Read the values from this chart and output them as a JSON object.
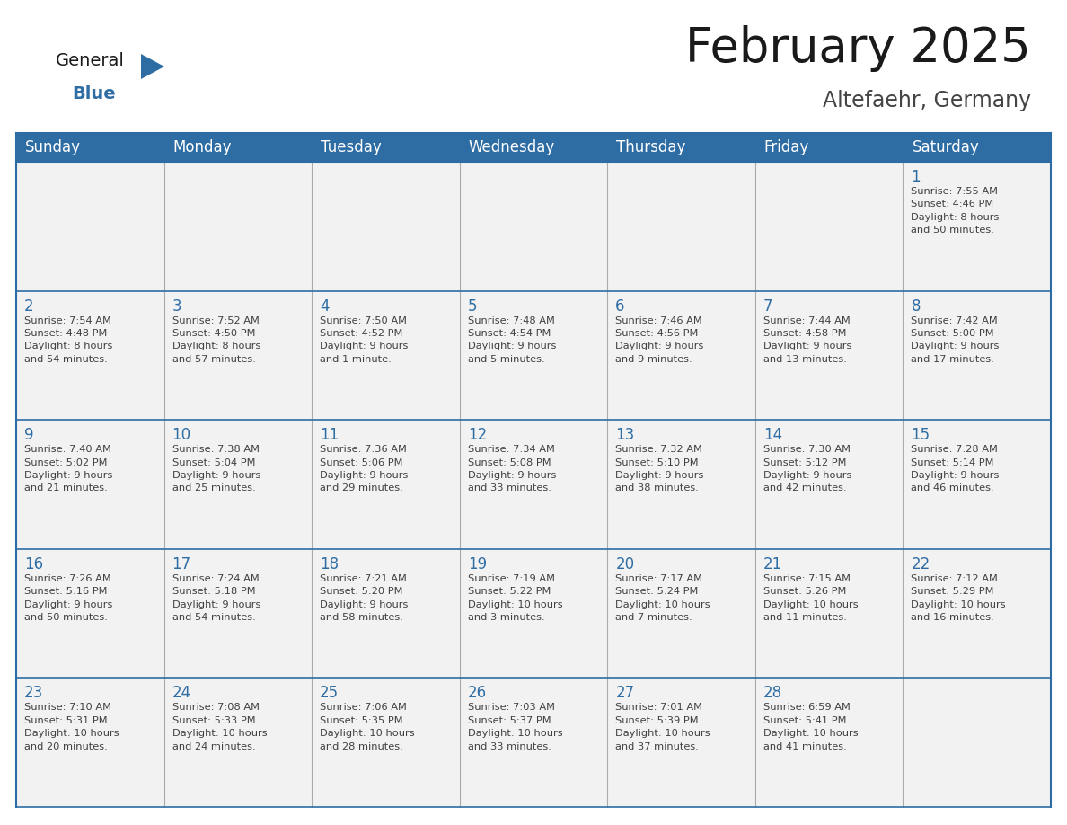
{
  "title": "February 2025",
  "subtitle": "Altefaehr, Germany",
  "header_bg": "#2E6DA4",
  "header_text": "#FFFFFF",
  "cell_bg": "#F2F2F2",
  "day_number_color": "#2E6DA4",
  "text_color": "#404040",
  "line_color": "#2E6DA4",
  "days_of_week": [
    "Sunday",
    "Monday",
    "Tuesday",
    "Wednesday",
    "Thursday",
    "Friday",
    "Saturday"
  ],
  "weeks": [
    [
      {
        "day": null,
        "info": null
      },
      {
        "day": null,
        "info": null
      },
      {
        "day": null,
        "info": null
      },
      {
        "day": null,
        "info": null
      },
      {
        "day": null,
        "info": null
      },
      {
        "day": null,
        "info": null
      },
      {
        "day": 1,
        "info": "Sunrise: 7:55 AM\nSunset: 4:46 PM\nDaylight: 8 hours\nand 50 minutes."
      }
    ],
    [
      {
        "day": 2,
        "info": "Sunrise: 7:54 AM\nSunset: 4:48 PM\nDaylight: 8 hours\nand 54 minutes."
      },
      {
        "day": 3,
        "info": "Sunrise: 7:52 AM\nSunset: 4:50 PM\nDaylight: 8 hours\nand 57 minutes."
      },
      {
        "day": 4,
        "info": "Sunrise: 7:50 AM\nSunset: 4:52 PM\nDaylight: 9 hours\nand 1 minute."
      },
      {
        "day": 5,
        "info": "Sunrise: 7:48 AM\nSunset: 4:54 PM\nDaylight: 9 hours\nand 5 minutes."
      },
      {
        "day": 6,
        "info": "Sunrise: 7:46 AM\nSunset: 4:56 PM\nDaylight: 9 hours\nand 9 minutes."
      },
      {
        "day": 7,
        "info": "Sunrise: 7:44 AM\nSunset: 4:58 PM\nDaylight: 9 hours\nand 13 minutes."
      },
      {
        "day": 8,
        "info": "Sunrise: 7:42 AM\nSunset: 5:00 PM\nDaylight: 9 hours\nand 17 minutes."
      }
    ],
    [
      {
        "day": 9,
        "info": "Sunrise: 7:40 AM\nSunset: 5:02 PM\nDaylight: 9 hours\nand 21 minutes."
      },
      {
        "day": 10,
        "info": "Sunrise: 7:38 AM\nSunset: 5:04 PM\nDaylight: 9 hours\nand 25 minutes."
      },
      {
        "day": 11,
        "info": "Sunrise: 7:36 AM\nSunset: 5:06 PM\nDaylight: 9 hours\nand 29 minutes."
      },
      {
        "day": 12,
        "info": "Sunrise: 7:34 AM\nSunset: 5:08 PM\nDaylight: 9 hours\nand 33 minutes."
      },
      {
        "day": 13,
        "info": "Sunrise: 7:32 AM\nSunset: 5:10 PM\nDaylight: 9 hours\nand 38 minutes."
      },
      {
        "day": 14,
        "info": "Sunrise: 7:30 AM\nSunset: 5:12 PM\nDaylight: 9 hours\nand 42 minutes."
      },
      {
        "day": 15,
        "info": "Sunrise: 7:28 AM\nSunset: 5:14 PM\nDaylight: 9 hours\nand 46 minutes."
      }
    ],
    [
      {
        "day": 16,
        "info": "Sunrise: 7:26 AM\nSunset: 5:16 PM\nDaylight: 9 hours\nand 50 minutes."
      },
      {
        "day": 17,
        "info": "Sunrise: 7:24 AM\nSunset: 5:18 PM\nDaylight: 9 hours\nand 54 minutes."
      },
      {
        "day": 18,
        "info": "Sunrise: 7:21 AM\nSunset: 5:20 PM\nDaylight: 9 hours\nand 58 minutes."
      },
      {
        "day": 19,
        "info": "Sunrise: 7:19 AM\nSunset: 5:22 PM\nDaylight: 10 hours\nand 3 minutes."
      },
      {
        "day": 20,
        "info": "Sunrise: 7:17 AM\nSunset: 5:24 PM\nDaylight: 10 hours\nand 7 minutes."
      },
      {
        "day": 21,
        "info": "Sunrise: 7:15 AM\nSunset: 5:26 PM\nDaylight: 10 hours\nand 11 minutes."
      },
      {
        "day": 22,
        "info": "Sunrise: 7:12 AM\nSunset: 5:29 PM\nDaylight: 10 hours\nand 16 minutes."
      }
    ],
    [
      {
        "day": 23,
        "info": "Sunrise: 7:10 AM\nSunset: 5:31 PM\nDaylight: 10 hours\nand 20 minutes."
      },
      {
        "day": 24,
        "info": "Sunrise: 7:08 AM\nSunset: 5:33 PM\nDaylight: 10 hours\nand 24 minutes."
      },
      {
        "day": 25,
        "info": "Sunrise: 7:06 AM\nSunset: 5:35 PM\nDaylight: 10 hours\nand 28 minutes."
      },
      {
        "day": 26,
        "info": "Sunrise: 7:03 AM\nSunset: 5:37 PM\nDaylight: 10 hours\nand 33 minutes."
      },
      {
        "day": 27,
        "info": "Sunrise: 7:01 AM\nSunset: 5:39 PM\nDaylight: 10 hours\nand 37 minutes."
      },
      {
        "day": 28,
        "info": "Sunrise: 6:59 AM\nSunset: 5:41 PM\nDaylight: 10 hours\nand 41 minutes."
      },
      {
        "day": null,
        "info": null
      }
    ]
  ],
  "logo_general_color": "#1a1a1a",
  "logo_blue_color": "#2E6DA4",
  "title_fontsize": 38,
  "subtitle_fontsize": 17,
  "day_header_fontsize": 12,
  "day_number_fontsize": 12,
  "cell_text_fontsize": 8.2
}
